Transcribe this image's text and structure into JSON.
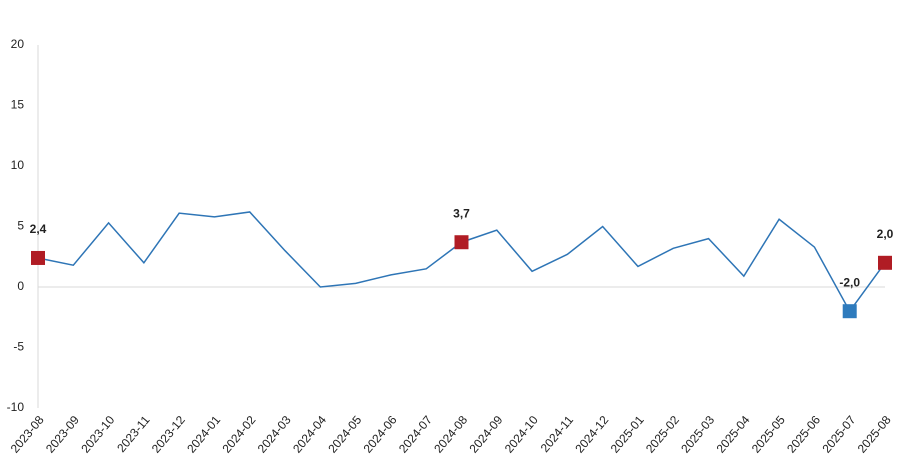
{
  "chart_data": {
    "type": "line",
    "categories": [
      "2023-08",
      "2023-09",
      "2023-10",
      "2023-11",
      "2023-12",
      "2024-01",
      "2024-02",
      "2024-03",
      "2024-04",
      "2024-05",
      "2024-06",
      "2024-07",
      "2024-08",
      "2024-09",
      "2024-10",
      "2024-11",
      "2024-12",
      "2025-01",
      "2025-02",
      "2025-03",
      "2025-04",
      "2025-05",
      "2025-06",
      "2025-07",
      "2025-08"
    ],
    "series": [
      {
        "color": "#2e75b6",
        "values": [
          2.4,
          1.8,
          5.3,
          2.0,
          6.1,
          5.8,
          6.2,
          3.0,
          0.0,
          0.3,
          1.0,
          1.5,
          3.7,
          4.7,
          1.3,
          2.7,
          5.0,
          1.7,
          3.2,
          4.0,
          0.9,
          5.6,
          3.3,
          -2.0,
          2.0
        ],
        "value_labels": [
          "2,4",
          null,
          null,
          null,
          null,
          null,
          null,
          null,
          null,
          null,
          null,
          null,
          "3,7",
          null,
          null,
          null,
          null,
          null,
          null,
          null,
          null,
          null,
          null,
          "-2,0",
          "2,0"
        ],
        "marker_colors": [
          "#b01c24",
          null,
          null,
          null,
          null,
          null,
          null,
          null,
          null,
          null,
          null,
          null,
          "#b01c24",
          null,
          null,
          null,
          null,
          null,
          null,
          null,
          null,
          null,
          null,
          "#2e7bbd",
          "#b01c24"
        ]
      }
    ],
    "ylim": [
      -10,
      20
    ],
    "yticks": [
      -10,
      -5,
      0,
      5,
      10,
      15,
      20
    ],
    "zero_line": true
  }
}
